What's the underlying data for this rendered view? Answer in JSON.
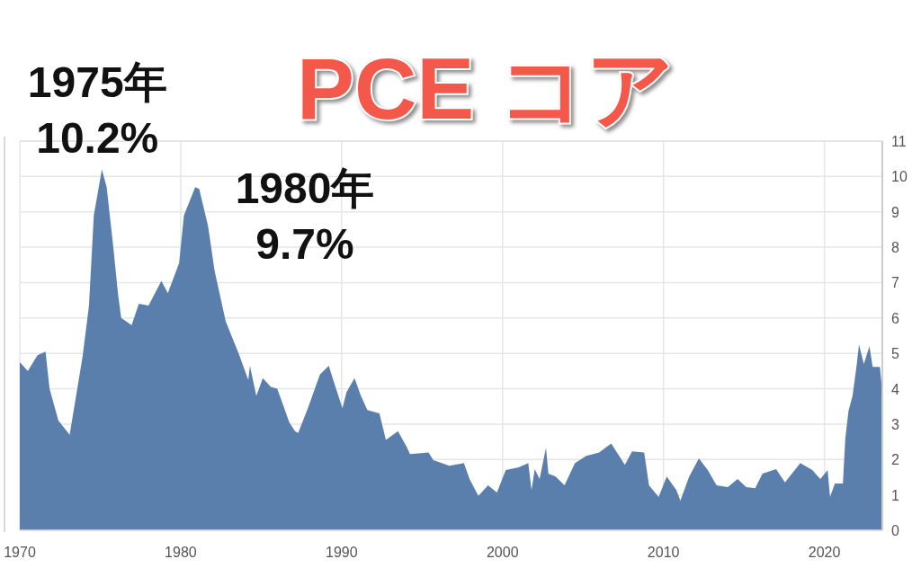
{
  "chart_data": {
    "type": "area",
    "title": "PCE コア",
    "color": "#5b7fad",
    "x": [
      1970.0,
      1970.5,
      1971.1,
      1971.6,
      1971.85,
      1972.4,
      1973.1,
      1973.9,
      1974.3,
      1974.6,
      1975.1,
      1975.4,
      1975.8,
      1976.1,
      1976.3,
      1976.95,
      1977.4,
      1978.0,
      1978.8,
      1979.2,
      1979.9,
      1980.2,
      1980.9,
      1981.15,
      1981.7,
      1982.1,
      1982.8,
      1983.6,
      1984.2,
      1984.3,
      1984.7,
      1985.1,
      1985.6,
      1986.0,
      1986.75,
      1987.1,
      1987.3,
      1987.9,
      1988.65,
      1989.2,
      1989.55,
      1990.05,
      1990.3,
      1990.8,
      1991.2,
      1991.6,
      1992.35,
      1992.75,
      1993.5,
      1994.05,
      1994.25,
      1995.4,
      1995.7,
      1996.7,
      1997.6,
      1997.95,
      1998.5,
      1999.1,
      1999.65,
      2000.2,
      2001.0,
      2001.6,
      2001.8,
      2002.0,
      2002.3,
      2002.7,
      2002.85,
      2003.3,
      2003.85,
      2004.5,
      2005.2,
      2006.0,
      2006.75,
      2007.6,
      2008.05,
      2008.8,
      2009.1,
      2009.7,
      2010.2,
      2010.8,
      2011.05,
      2011.6,
      2012.2,
      2012.75,
      2013.3,
      2014.0,
      2014.6,
      2015.15,
      2015.7,
      2016.15,
      2017.0,
      2017.55,
      2018.5,
      2019.25,
      2019.75,
      2020.2,
      2020.35,
      2020.65,
      2021.15,
      2021.3,
      2021.5,
      2021.75,
      2022.0,
      2022.15,
      2022.45,
      2022.8,
      2023.0,
      2023.45,
      2023.55
    ],
    "values": [
      4.75,
      4.5,
      4.95,
      5.05,
      4.0,
      3.1,
      2.7,
      4.9,
      6.35,
      8.9,
      10.2,
      9.7,
      8.05,
      6.7,
      6.0,
      5.8,
      6.4,
      6.35,
      7.05,
      6.7,
      7.55,
      8.9,
      9.7,
      9.65,
      8.6,
      7.35,
      5.9,
      5.0,
      4.25,
      4.65,
      3.8,
      4.3,
      4.05,
      4.0,
      3.05,
      2.8,
      2.75,
      3.45,
      4.4,
      4.65,
      4.15,
      3.45,
      3.9,
      4.3,
      3.8,
      3.4,
      3.3,
      2.55,
      2.8,
      2.35,
      2.15,
      2.2,
      1.98,
      1.82,
      1.9,
      1.45,
      0.97,
      1.27,
      1.07,
      1.7,
      1.78,
      1.9,
      1.14,
      1.73,
      1.45,
      2.33,
      1.6,
      1.52,
      1.27,
      1.9,
      2.1,
      2.2,
      2.45,
      1.85,
      2.23,
      2.2,
      1.27,
      0.94,
      1.52,
      1.14,
      0.84,
      1.52,
      2.03,
      1.7,
      1.27,
      1.22,
      1.45,
      1.22,
      1.19,
      1.6,
      1.73,
      1.35,
      1.9,
      1.7,
      1.45,
      1.7,
      0.94,
      1.32,
      1.32,
      2.6,
      3.38,
      3.8,
      4.65,
      5.25,
      4.7,
      5.2,
      4.62,
      4.62,
      4.15
    ],
    "xlim": [
      1970,
      2023.6
    ],
    "ylim": [
      0,
      11
    ],
    "xticks": [
      1970,
      1980,
      1990,
      2000,
      2010,
      2020
    ],
    "yticks": [
      0,
      1,
      2,
      3,
      4,
      5,
      6,
      7,
      8,
      9,
      10,
      11
    ],
    "grid": true,
    "annotations": [
      {
        "text": "1975年\n10.2%",
        "x": 1975.1,
        "y": 10.2
      },
      {
        "text": "1980年\n9.7%",
        "x": 1980.9,
        "y": 9.7
      }
    ]
  }
}
